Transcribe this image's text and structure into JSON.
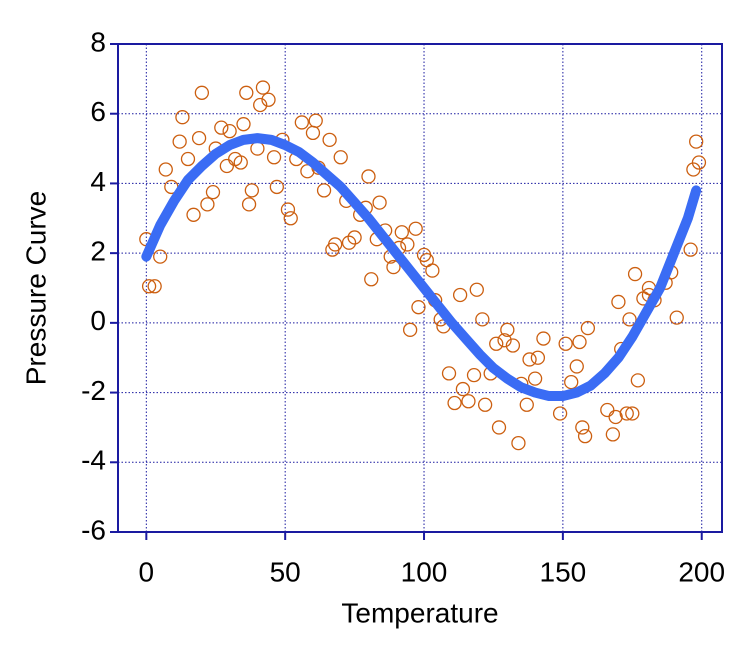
{
  "chart_data": {
    "type": "scatter",
    "xlabel": "Temperature",
    "ylabel": "Pressure Curve",
    "xlim": [
      -10.2,
      207.3
    ],
    "ylim": [
      -6,
      8
    ],
    "xticks": [
      0,
      50,
      100,
      150,
      200
    ],
    "yticks": [
      -6,
      -4,
      -2,
      0,
      2,
      4,
      6,
      8
    ],
    "grid": true,
    "series": [
      {
        "mode": "markers",
        "color": "#cc5f10",
        "x": [
          0,
          1,
          3,
          5,
          7,
          9,
          12,
          13,
          15,
          17,
          19,
          20,
          22,
          24,
          25,
          27,
          29,
          30,
          32,
          34,
          35,
          36,
          37,
          38,
          40,
          41,
          42,
          44,
          46,
          47,
          49,
          51,
          52,
          54,
          56,
          58,
          60,
          61,
          62,
          64,
          66,
          67,
          68,
          70,
          72,
          73,
          75,
          77,
          79,
          80,
          81,
          83,
          84,
          86,
          88,
          89,
          91,
          92,
          94,
          95,
          97,
          98,
          100,
          101,
          103,
          104,
          106,
          107,
          109,
          111,
          113,
          114,
          116,
          118,
          119,
          121,
          122,
          124,
          126,
          127,
          129,
          130,
          132,
          134,
          135,
          137,
          138,
          140,
          141,
          143,
          149,
          151,
          153,
          155,
          156,
          157,
          158,
          159,
          166,
          168,
          169,
          170,
          171,
          173,
          174,
          175,
          176,
          177,
          179,
          181,
          181,
          183,
          187,
          189,
          191,
          196,
          197,
          198,
          199
        ],
        "y": [
          2.4,
          1.05,
          1.05,
          1.9,
          4.4,
          3.9,
          5.2,
          5.9,
          4.7,
          3.1,
          5.3,
          6.6,
          3.4,
          3.75,
          5.0,
          5.6,
          4.5,
          5.5,
          4.7,
          4.6,
          5.7,
          6.6,
          3.4,
          3.8,
          5.0,
          6.25,
          6.75,
          6.4,
          4.75,
          3.9,
          5.25,
          3.25,
          3.0,
          4.7,
          5.75,
          4.35,
          5.45,
          5.8,
          4.45,
          3.8,
          5.25,
          2.1,
          2.25,
          4.75,
          3.5,
          2.3,
          2.45,
          3.1,
          3.3,
          4.2,
          1.25,
          2.4,
          3.45,
          2.65,
          1.9,
          1.6,
          2.15,
          2.6,
          2.25,
          -0.2,
          2.7,
          0.45,
          1.95,
          1.8,
          1.5,
          0.65,
          0.1,
          -0.1,
          -1.45,
          -2.3,
          0.8,
          -1.9,
          -2.25,
          -1.5,
          0.95,
          0.1,
          -2.35,
          -1.45,
          -0.6,
          -3.0,
          -0.5,
          -0.2,
          -0.65,
          -3.45,
          -1.75,
          -2.35,
          -1.05,
          -1.6,
          -1.0,
          -0.45,
          -2.6,
          -0.6,
          -1.7,
          -1.25,
          -0.55,
          -3.0,
          -3.25,
          -0.15,
          -2.5,
          -3.2,
          -2.7,
          0.6,
          -0.75,
          -2.6,
          0.1,
          -2.6,
          1.4,
          -1.65,
          0.7,
          0.8,
          1.0,
          0.65,
          1.15,
          1.45,
          0.15,
          2.1,
          4.4,
          5.2,
          4.6
        ]
      },
      {
        "mode": "line",
        "color": "#3a6cf4",
        "x": [
          0,
          5,
          10,
          15,
          20,
          25,
          30,
          35,
          40,
          45,
          50,
          55,
          60,
          65,
          70,
          75,
          80,
          85,
          90,
          95,
          100,
          105,
          110,
          115,
          120,
          125,
          130,
          135,
          140,
          145,
          150,
          155,
          160,
          165,
          170,
          175,
          180,
          185,
          190,
          195,
          198
        ],
        "y": [
          1.9,
          2.8,
          3.5,
          4.1,
          4.5,
          4.85,
          5.1,
          5.25,
          5.3,
          5.25,
          5.1,
          4.9,
          4.6,
          4.25,
          3.9,
          3.45,
          3.0,
          2.5,
          2.0,
          1.5,
          1.0,
          0.5,
          0.0,
          -0.45,
          -0.9,
          -1.3,
          -1.6,
          -1.85,
          -2.0,
          -2.1,
          -2.1,
          -2.0,
          -1.8,
          -1.45,
          -1.0,
          -0.4,
          0.3,
          1.0,
          2.0,
          3.0,
          3.8
        ]
      }
    ]
  }
}
